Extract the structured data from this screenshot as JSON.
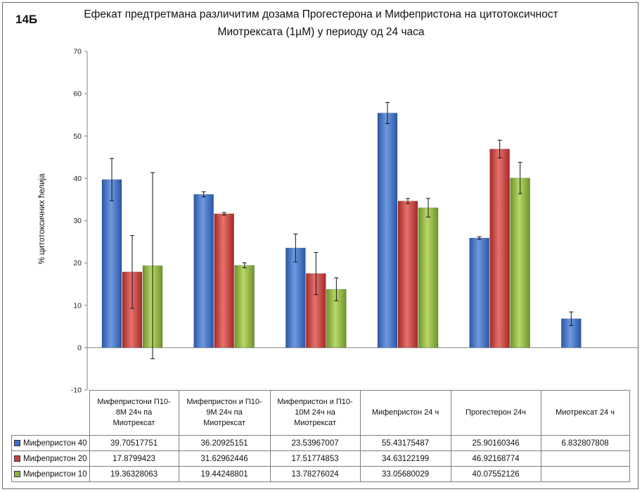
{
  "panel_label": "14Б",
  "chart_data": {
    "type": "bar",
    "title": "Ефекат предтретмана различитим дозама Прогестерона и Мифепристона  на цитотоксичност",
    "subtitle": "Миотрексата (1µM) у периоду од 24 часа",
    "ylabel": "% цитотоксичних ћелија",
    "ylim": [
      -10,
      70
    ],
    "yticks": [
      -10,
      0,
      10,
      20,
      30,
      40,
      50,
      60,
      70
    ],
    "grid": false,
    "legend": "table",
    "categories": [
      [
        "Мифепристони П10-",
        "8М 24ч па",
        "Миотрексат"
      ],
      [
        "Мифепристон и П10-",
        "9М 24ч па",
        "Миотрексат"
      ],
      [
        "Мифепристон и П10-",
        "10М 24ч на",
        "Миотрексат"
      ],
      [
        "Мифепристон 24 ч"
      ],
      [
        "Прогестерон 24ч"
      ],
      [
        "Миотрексат 24 ч"
      ]
    ],
    "series": [
      {
        "name": "Мифепристон 40",
        "color": "#3a6fc4",
        "values": [
          39.70517751,
          36.20925151,
          23.53967007,
          55.43175487,
          25.90160346,
          6.832807808
        ],
        "labels": [
          "39.70517751",
          "36.20925151",
          "23.53967007",
          "55.43175487",
          "25.90160346",
          "6.832807808"
        ],
        "errors": [
          5.0,
          0.6,
          3.3,
          2.5,
          0.3,
          1.6
        ]
      },
      {
        "name": "Мифепристон 20",
        "color": "#c8403c",
        "values": [
          17.8799423,
          31.62962446,
          17.51774853,
          34.63122199,
          46.92168774,
          null
        ],
        "labels": [
          "17.8799423",
          "31.62962446",
          "17.51774853",
          "34.63122199",
          "46.92168774",
          ""
        ],
        "errors": [
          8.6,
          0.3,
          5.0,
          0.6,
          2.1,
          null
        ]
      },
      {
        "name": "Мифепристон 10",
        "color": "#8db43a",
        "values": [
          19.36328063,
          19.44248801,
          13.78276024,
          33.05680029,
          40.07552126,
          null
        ],
        "labels": [
          "19.36328063",
          "19.44248801",
          "13.78276024",
          "33.05680029",
          "40.07552126",
          ""
        ],
        "errors": [
          22.0,
          0.6,
          2.7,
          2.2,
          3.7,
          null
        ]
      }
    ]
  }
}
